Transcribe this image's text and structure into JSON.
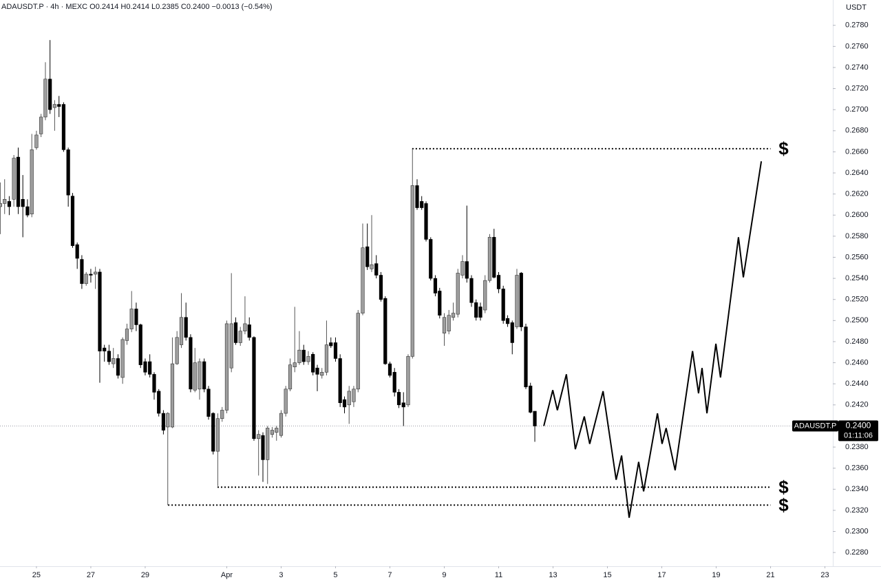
{
  "chart_data": {
    "type": "candlestick",
    "header": "ADAUSDT.P · 4h · MEXC  O0.2414 H0.2414 L0.2385 C0.2400 −0.0013 (−0.54%)",
    "currency": "USDT",
    "up_color": "#9e9e9e",
    "down_color": "#000000",
    "x": [
      -1.33,
      -1.17,
      -1,
      -0.83,
      -0.67,
      -0.5,
      -0.33,
      -0.17,
      0,
      0.17,
      0.33,
      0.5,
      0.67,
      0.83,
      1,
      1.17,
      1.33,
      1.5,
      1.67,
      1.83,
      2,
      2.17,
      2.33,
      2.5,
      2.67,
      2.83,
      3,
      3.17,
      3.33,
      3.5,
      3.67,
      3.83,
      4,
      4.17,
      4.33,
      4.5,
      4.67,
      4.83,
      5,
      5.17,
      5.33,
      5.5,
      5.67,
      5.83,
      6,
      6.17,
      6.33,
      6.5,
      6.67,
      6.83,
      7,
      7.17,
      7.33,
      7.5,
      7.67,
      7.83,
      8,
      8.17,
      8.33,
      8.5,
      8.67,
      8.83,
      9,
      9.17,
      9.33,
      9.5,
      9.67,
      9.83,
      10,
      10.17,
      10.33,
      10.5,
      10.67,
      10.83,
      11,
      11.17,
      11.33,
      11.5,
      11.67,
      11.83,
      12,
      12.17,
      12.33,
      12.5,
      12.67,
      12.83,
      13,
      13.17,
      13.33,
      13.5,
      13.67,
      13.83,
      14,
      14.17,
      14.33,
      14.5,
      14.67,
      14.83,
      15,
      15.17,
      15.33,
      15.5,
      15.67,
      15.83,
      16,
      16.17,
      16.33,
      16.5,
      16.67,
      16.83,
      17,
      17.17,
      17.33,
      17.5,
      17.67,
      17.83,
      18,
      18.17,
      18.33
    ],
    "open": [
      0.2608,
      0.2611,
      0.2613,
      0.2615,
      0.2655,
      0.2615,
      0.2608,
      0.2601,
      0.2664,
      0.2677,
      0.2693,
      0.2729,
      0.2702,
      0.2705,
      0.2705,
      0.2662,
      0.2618,
      0.2572,
      0.2558,
      0.2535,
      0.2544,
      0.2544,
      0.2546,
      0.2474,
      0.2471,
      0.2459,
      0.2464,
      0.2446,
      0.2481,
      0.2492,
      0.2511,
      0.2496,
      0.2461,
      0.2461,
      0.2449,
      0.2433,
      0.2412,
      0.2399,
      0.2399,
      0.2459,
      0.2477,
      0.2503,
      0.2484,
      0.2434,
      0.2435,
      0.2461,
      0.2435,
      0.2412,
      0.2376,
      0.2407,
      0.2415,
      0.2455,
      0.2498,
      0.2479,
      0.249,
      0.2496,
      0.2484,
      0.2388,
      0.2391,
      0.2368,
      0.2392,
      0.2394,
      0.2391,
      0.2412,
      0.2435,
      0.2456,
      0.246,
      0.2472,
      0.2461,
      0.2468,
      0.2455,
      0.2448,
      0.2451,
      0.2479,
      0.2479,
      0.2464,
      0.2425,
      0.242,
      0.2423,
      0.2435,
      0.2507,
      0.257,
      0.2549,
      0.2554,
      0.2543,
      0.2521,
      0.2459,
      0.2451,
      0.2432,
      0.2422,
      0.242,
      0.2466,
      0.2628,
      0.2613,
      0.2611,
      0.2577,
      0.254,
      0.2528,
      0.2488,
      0.249,
      0.2503,
      0.2506,
      0.2543,
      0.2556,
      0.254,
      0.2517,
      0.2513,
      0.251,
      0.2538,
      0.2579,
      0.2543,
      0.253,
      0.2502,
      0.2498,
      0.2494,
      0.2545,
      0.2494,
      0.2438,
      0.2414
    ],
    "high": [
      0.2631,
      0.2634,
      0.2618,
      0.2657,
      0.2664,
      0.2638,
      0.2615,
      0.2677,
      0.268,
      0.2696,
      0.2745,
      0.2766,
      0.2709,
      0.2713,
      0.2707,
      0.2664,
      0.2621,
      0.2574,
      0.2562,
      0.2546,
      0.2549,
      0.2551,
      0.2549,
      0.2477,
      0.2477,
      0.2474,
      0.2468,
      0.2484,
      0.2497,
      0.2528,
      0.2517,
      0.2497,
      0.2464,
      0.2468,
      0.2451,
      0.2435,
      0.2415,
      0.2413,
      0.2484,
      0.249,
      0.2526,
      0.2517,
      0.2487,
      0.2474,
      0.2464,
      0.2464,
      0.2438,
      0.2413,
      0.2412,
      0.2418,
      0.25,
      0.2545,
      0.2503,
      0.2494,
      0.2523,
      0.2503,
      0.2485,
      0.2396,
      0.2394,
      0.24,
      0.2399,
      0.24,
      0.2415,
      0.2438,
      0.2464,
      0.2513,
      0.249,
      0.2477,
      0.2471,
      0.247,
      0.2458,
      0.2455,
      0.25,
      0.2484,
      0.2484,
      0.2468,
      0.2428,
      0.2438,
      0.2438,
      0.251,
      0.2592,
      0.2592,
      0.26,
      0.2562,
      0.2546,
      0.2523,
      0.2461,
      0.2455,
      0.2435,
      0.2432,
      0.2468,
      0.2663,
      0.2634,
      0.2618,
      0.2613,
      0.2579,
      0.2543,
      0.2531,
      0.2507,
      0.251,
      0.2517,
      0.2549,
      0.2562,
      0.2609,
      0.2543,
      0.252,
      0.2517,
      0.2543,
      0.2582,
      0.2587,
      0.2546,
      0.2533,
      0.2505,
      0.25,
      0.2549,
      0.2546,
      0.2497,
      0.2441,
      0.2414
    ],
    "low": [
      0.2582,
      0.2601,
      0.26,
      0.2608,
      0.2601,
      0.2579,
      0.2598,
      0.2598,
      0.2662,
      0.2674,
      0.269,
      0.2696,
      0.268,
      0.2693,
      0.266,
      0.2608,
      0.2569,
      0.2549,
      0.253,
      0.2533,
      0.2536,
      0.253,
      0.2441,
      0.2461,
      0.2458,
      0.2455,
      0.2445,
      0.244,
      0.2477,
      0.2489,
      0.249,
      0.2455,
      0.2448,
      0.2446,
      0.2425,
      0.2409,
      0.2392,
      0.2325,
      0.2398,
      0.2458,
      0.2474,
      0.2481,
      0.2432,
      0.2432,
      0.2425,
      0.2432,
      0.2406,
      0.2373,
      0.2343,
      0.2404,
      0.2412,
      0.2451,
      0.2477,
      0.2476,
      0.2487,
      0.2481,
      0.2386,
      0.2353,
      0.2347,
      0.2345,
      0.2389,
      0.2386,
      0.2389,
      0.2409,
      0.2433,
      0.2451,
      0.2458,
      0.2458,
      0.2458,
      0.2448,
      0.2433,
      0.2445,
      0.2448,
      0.2474,
      0.2461,
      0.2418,
      0.2412,
      0.2402,
      0.2418,
      0.2432,
      0.2505,
      0.2548,
      0.2546,
      0.254,
      0.2518,
      0.2458,
      0.2446,
      0.2428,
      0.2417,
      0.24,
      0.2418,
      0.2464,
      0.2605,
      0.2605,
      0.2575,
      0.2538,
      0.2523,
      0.2502,
      0.2476,
      0.2487,
      0.25,
      0.2503,
      0.254,
      0.2536,
      0.2513,
      0.25,
      0.25,
      0.2507,
      0.2536,
      0.254,
      0.2526,
      0.2497,
      0.2494,
      0.2468,
      0.2492,
      0.249,
      0.2435,
      0.2412,
      0.2385
    ],
    "close": [
      0.2611,
      0.2615,
      0.2608,
      0.2654,
      0.2608,
      0.2608,
      0.26,
      0.2662,
      0.2676,
      0.2693,
      0.2729,
      0.27,
      0.2705,
      0.2703,
      0.2662,
      0.2619,
      0.2571,
      0.2559,
      0.2535,
      0.2544,
      0.2543,
      0.2546,
      0.2471,
      0.2471,
      0.2461,
      0.2464,
      0.2448,
      0.2482,
      0.2492,
      0.2511,
      0.2496,
      0.2458,
      0.2451,
      0.2449,
      0.2432,
      0.2412,
      0.2396,
      0.2412,
      0.2459,
      0.2484,
      0.2503,
      0.2484,
      0.2435,
      0.246,
      0.2461,
      0.2435,
      0.2409,
      0.2376,
      0.2407,
      0.2415,
      0.2497,
      0.2497,
      0.2479,
      0.249,
      0.2497,
      0.2484,
      0.2388,
      0.2392,
      0.2368,
      0.2398,
      0.2396,
      0.2398,
      0.2412,
      0.2435,
      0.2458,
      0.246,
      0.2472,
      0.2461,
      0.2466,
      0.2451,
      0.2449,
      0.2451,
      0.2477,
      0.2476,
      0.2464,
      0.2422,
      0.2418,
      0.2433,
      0.2435,
      0.2507,
      0.2569,
      0.2551,
      0.2553,
      0.2543,
      0.252,
      0.2459,
      0.2448,
      0.2432,
      0.242,
      0.2418,
      0.2466,
      0.2628,
      0.2607,
      0.2607,
      0.2577,
      0.254,
      0.2526,
      0.2505,
      0.2503,
      0.2505,
      0.2507,
      0.2545,
      0.2556,
      0.254,
      0.2517,
      0.2503,
      0.2503,
      0.2538,
      0.2579,
      0.2541,
      0.253,
      0.25,
      0.2497,
      0.2479,
      0.2543,
      0.2494,
      0.2437,
      0.2413,
      0.24
    ],
    "projection": {
      "color": "#000000",
      "x": [
        18.66,
        18.99,
        19.16,
        19.49,
        19.82,
        20.15,
        20.35,
        20.84,
        21.32,
        21.52,
        21.8,
        22.15,
        22.33,
        22.84,
        23.01,
        23.16,
        23.49,
        24.13,
        24.35,
        24.48,
        24.66,
        24.99,
        25.16,
        25.82,
        26,
        26.66
      ],
      "values": [
        0.24,
        0.2434,
        0.2415,
        0.2449,
        0.2378,
        0.2409,
        0.2383,
        0.2433,
        0.2349,
        0.2372,
        0.2313,
        0.2366,
        0.2338,
        0.2412,
        0.2383,
        0.2398,
        0.2358,
        0.2471,
        0.2431,
        0.2455,
        0.2412,
        0.2478,
        0.2446,
        0.2579,
        0.2541,
        0.2651
      ]
    },
    "levels": [
      {
        "value": 0.2663,
        "x_start": 13.82,
        "x_end": 27,
        "label": "$"
      },
      {
        "value": 0.2342,
        "x_start": 6.66,
        "x_end": 27,
        "label": "$"
      },
      {
        "value": 0.2325,
        "x_start": 4.84,
        "x_end": 27,
        "label": "$"
      }
    ],
    "last_price": {
      "value": 0.24,
      "label": "0.2400",
      "symbol": "ADAUSDT.P",
      "countdown": "01:11:06"
    },
    "xlim": [
      -1.34,
      29.29
    ],
    "xticks": [
      {
        "value": 0,
        "label": "25"
      },
      {
        "value": 2,
        "label": "27"
      },
      {
        "value": 4,
        "label": "29"
      },
      {
        "value": 7,
        "label": "Apr"
      },
      {
        "value": 9,
        "label": "3"
      },
      {
        "value": 11,
        "label": "5"
      },
      {
        "value": 13,
        "label": "7"
      },
      {
        "value": 15,
        "label": "9"
      },
      {
        "value": 17,
        "label": "11"
      },
      {
        "value": 19,
        "label": "13"
      },
      {
        "value": 21,
        "label": "15"
      },
      {
        "value": 23,
        "label": "17"
      },
      {
        "value": 25,
        "label": "19"
      },
      {
        "value": 27,
        "label": "21"
      },
      {
        "value": 29,
        "label": "23"
      }
    ],
    "ylim": [
      0.2267,
      0.2804
    ],
    "yticks": [
      {
        "value": 0.228,
        "label": "0.2280"
      },
      {
        "value": 0.23,
        "label": "0.2300"
      },
      {
        "value": 0.232,
        "label": "0.2320"
      },
      {
        "value": 0.234,
        "label": "0.2340"
      },
      {
        "value": 0.236,
        "label": "0.2360"
      },
      {
        "value": 0.238,
        "label": "0.2380"
      },
      {
        "value": 0.24,
        "label": "0.2400"
      },
      {
        "value": 0.242,
        "label": "0.2420"
      },
      {
        "value": 0.244,
        "label": "0.2440"
      },
      {
        "value": 0.246,
        "label": "0.2460"
      },
      {
        "value": 0.248,
        "label": "0.2480"
      },
      {
        "value": 0.25,
        "label": "0.2500"
      },
      {
        "value": 0.252,
        "label": "0.2520"
      },
      {
        "value": 0.254,
        "label": "0.2540"
      },
      {
        "value": 0.256,
        "label": "0.2560"
      },
      {
        "value": 0.258,
        "label": "0.2580"
      },
      {
        "value": 0.26,
        "label": "0.2600"
      },
      {
        "value": 0.262,
        "label": "0.2620"
      },
      {
        "value": 0.264,
        "label": "0.2640"
      },
      {
        "value": 0.266,
        "label": "0.2660"
      },
      {
        "value": 0.268,
        "label": "0.2680"
      },
      {
        "value": 0.27,
        "label": "0.2700"
      },
      {
        "value": 0.272,
        "label": "0.2720"
      },
      {
        "value": 0.274,
        "label": "0.2740"
      },
      {
        "value": 0.276,
        "label": "0.2760"
      },
      {
        "value": 0.278,
        "label": "0.2780"
      }
    ]
  }
}
